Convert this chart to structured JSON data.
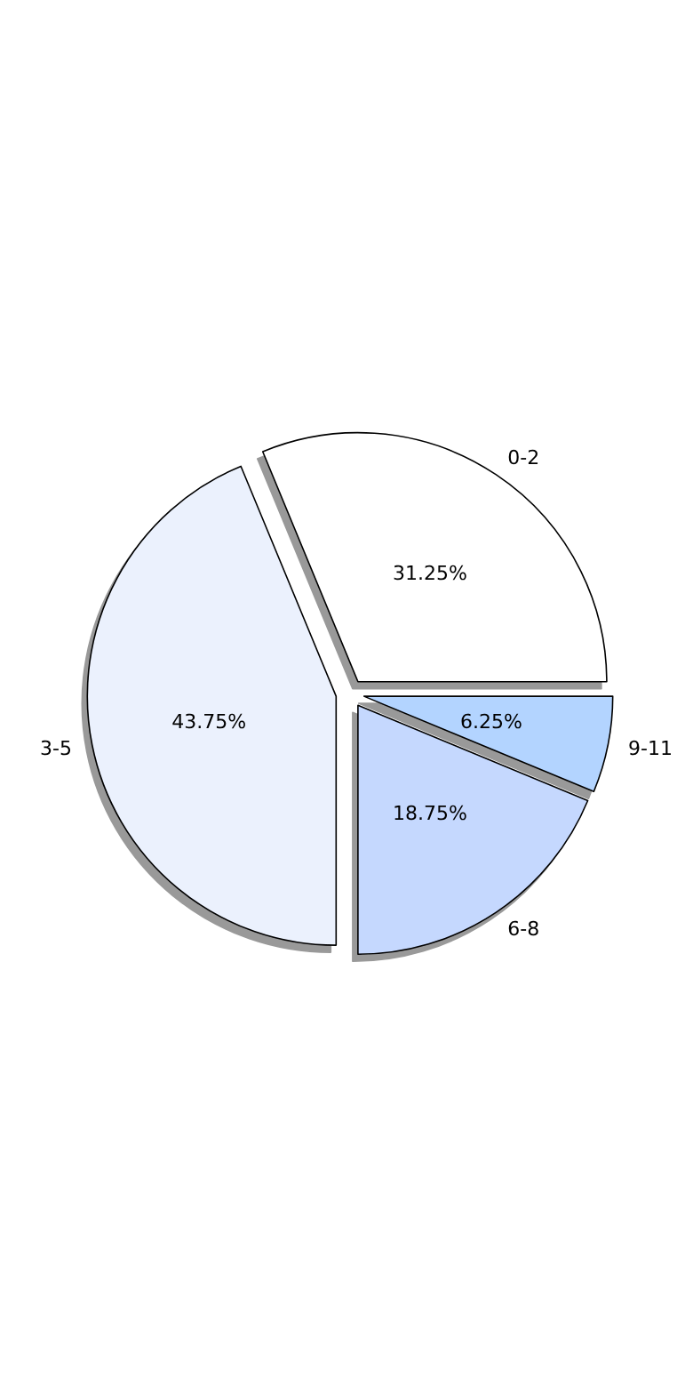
{
  "chart_data": {
    "type": "pie",
    "categories": [
      "0-2",
      "3-5",
      "6-8",
      "9-11"
    ],
    "values": [
      31.25,
      43.75,
      18.75,
      6.25
    ],
    "value_labels": [
      "31.25%",
      "43.75%",
      "18.75%",
      "6.25%"
    ],
    "colors": [
      "#ffffff",
      "#ebf1fd",
      "#c5d8fe",
      "#b3d4ff"
    ],
    "legend": false
  }
}
